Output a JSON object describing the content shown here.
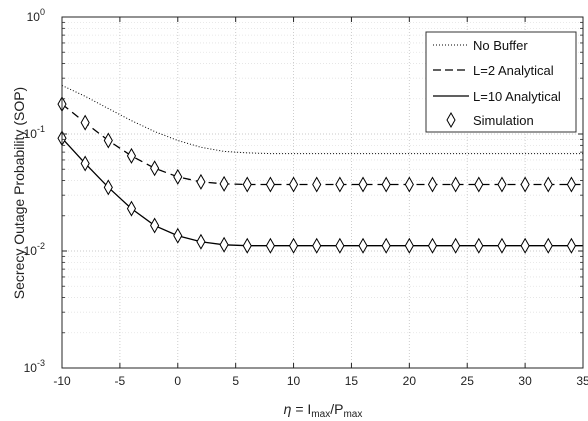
{
  "chart_data": {
    "type": "line",
    "title": "",
    "xlabel": "η = I_max/P_max",
    "xlabel_parts": {
      "eta": "η",
      "eq": " = I",
      "sub1": "max",
      "slash": "/P",
      "sub2": "max"
    },
    "ylabel": "Secrecy Outage Probability (SOP)",
    "xlim": [
      -10,
      35
    ],
    "ylim": [
      0.001,
      1
    ],
    "yscale": "log",
    "grid": true,
    "legend_position": "top-right",
    "x_ticks": [
      "-10",
      "-5",
      "0",
      "5",
      "10",
      "15",
      "20",
      "25",
      "30",
      "35"
    ],
    "y_ticks": [
      {
        "base": "10",
        "exp": "0",
        "value": 1
      },
      {
        "base": "10",
        "exp": "-1",
        "value": 0.1
      },
      {
        "base": "10",
        "exp": "-2",
        "value": 0.01
      },
      {
        "base": "10",
        "exp": "-3",
        "value": 0.001
      }
    ],
    "series": [
      {
        "name": "No Buffer",
        "style": "dotted",
        "color": "#000000",
        "x": [
          -10,
          -8,
          -6,
          -4,
          -2,
          0,
          2,
          4,
          6,
          8,
          10,
          12,
          14,
          16,
          18,
          20,
          22,
          24,
          26,
          28,
          30,
          32,
          34,
          35
        ],
        "y": [
          0.26,
          0.21,
          0.165,
          0.13,
          0.105,
          0.088,
          0.077,
          0.071,
          0.069,
          0.068,
          0.068,
          0.068,
          0.068,
          0.068,
          0.068,
          0.068,
          0.068,
          0.068,
          0.068,
          0.068,
          0.068,
          0.068,
          0.068,
          0.068
        ]
      },
      {
        "name": "L=2 Analytical",
        "style": "dashed",
        "color": "#000000",
        "x": [
          -10,
          -8,
          -6,
          -4,
          -2,
          0,
          2,
          4,
          6,
          8,
          10,
          12,
          14,
          16,
          18,
          20,
          22,
          24,
          26,
          28,
          30,
          32,
          34,
          35
        ],
        "y": [
          0.18,
          0.125,
          0.088,
          0.065,
          0.051,
          0.043,
          0.039,
          0.0375,
          0.037,
          0.037,
          0.037,
          0.037,
          0.037,
          0.037,
          0.037,
          0.037,
          0.037,
          0.037,
          0.037,
          0.037,
          0.037,
          0.037,
          0.037,
          0.037
        ]
      },
      {
        "name": "L=10 Analytical",
        "style": "solid",
        "color": "#000000",
        "x": [
          -10,
          -8,
          -6,
          -4,
          -2,
          0,
          2,
          4,
          6,
          8,
          10,
          12,
          14,
          16,
          18,
          20,
          22,
          24,
          26,
          28,
          30,
          32,
          34,
          35
        ],
        "y": [
          0.092,
          0.056,
          0.035,
          0.023,
          0.0165,
          0.0135,
          0.012,
          0.0113,
          0.0111,
          0.0111,
          0.0111,
          0.0111,
          0.0111,
          0.0111,
          0.0111,
          0.0111,
          0.0111,
          0.0111,
          0.0111,
          0.0111,
          0.0111,
          0.0111,
          0.0111,
          0.0111
        ]
      },
      {
        "name": "Simulation",
        "style": "markers",
        "marker": "diamond",
        "color": "#000000",
        "groups": [
          {
            "x": [
              -10,
              -8,
              -6,
              -4,
              -2,
              0,
              2,
              4,
              6,
              8,
              10,
              12,
              14,
              16,
              18,
              20,
              22,
              24,
              26,
              28,
              30,
              32,
              34
            ],
            "y": [
              0.18,
              0.125,
              0.088,
              0.065,
              0.051,
              0.043,
              0.039,
              0.0375,
              0.037,
              0.037,
              0.037,
              0.037,
              0.037,
              0.037,
              0.037,
              0.037,
              0.037,
              0.037,
              0.037,
              0.037,
              0.037,
              0.037,
              0.037
            ]
          },
          {
            "x": [
              -10,
              -8,
              -6,
              -4,
              -2,
              0,
              2,
              4,
              6,
              8,
              10,
              12,
              14,
              16,
              18,
              20,
              22,
              24,
              26,
              28,
              30,
              32,
              34
            ],
            "y": [
              0.092,
              0.056,
              0.035,
              0.023,
              0.0165,
              0.0135,
              0.012,
              0.0113,
              0.0111,
              0.0111,
              0.0111,
              0.0111,
              0.0111,
              0.0111,
              0.0111,
              0.0111,
              0.0111,
              0.0111,
              0.0111,
              0.0111,
              0.0111,
              0.0111,
              0.0111
            ]
          }
        ]
      }
    ]
  }
}
